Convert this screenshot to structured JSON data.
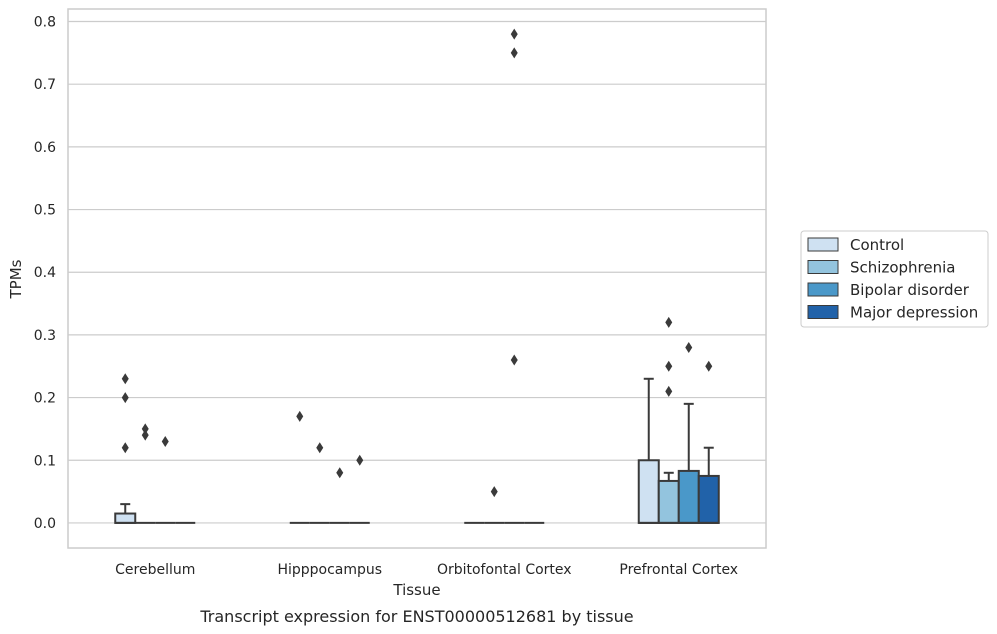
{
  "chart_data": {
    "type": "box",
    "title": "",
    "caption": "Transcript expression for ENST00000512681 by tissue",
    "xlabel": "Tissue",
    "ylabel": "TPMs",
    "ylim": [
      -0.04,
      0.82
    ],
    "yticks": [
      "0.0",
      "0.1",
      "0.2",
      "0.3",
      "0.4",
      "0.5",
      "0.6",
      "0.7",
      "0.8"
    ],
    "grid": "horizontal",
    "legend_position": "right",
    "categories": [
      "Cerebellum",
      "Hipppocampus",
      "Orbitofontal Cortex",
      "Prefrontal Cortex"
    ],
    "series": [
      {
        "name": "Control",
        "color": "#cfe1f2",
        "boxes": [
          {
            "q1": 0.0,
            "median": 0.0,
            "q3": 0.015,
            "whisker_low": 0.0,
            "whisker_high": 0.03,
            "outliers": [
              0.12,
              0.2,
              0.23
            ]
          },
          {
            "q1": 0.0,
            "median": 0.0,
            "q3": 0.0,
            "whisker_low": 0.0,
            "whisker_high": 0.0,
            "outliers": [
              0.17
            ]
          },
          {
            "q1": 0.0,
            "median": 0.0,
            "q3": 0.0,
            "whisker_low": 0.0,
            "whisker_high": 0.0,
            "outliers": []
          },
          {
            "q1": 0.0,
            "median": 0.0,
            "q3": 0.1,
            "whisker_low": 0.0,
            "whisker_high": 0.23,
            "outliers": []
          }
        ]
      },
      {
        "name": "Schizophrenia",
        "color": "#93c4de",
        "boxes": [
          {
            "q1": 0.0,
            "median": 0.0,
            "q3": 0.0,
            "whisker_low": 0.0,
            "whisker_high": 0.0,
            "outliers": [
              0.14,
              0.15
            ]
          },
          {
            "q1": 0.0,
            "median": 0.0,
            "q3": 0.0,
            "whisker_low": 0.0,
            "whisker_high": 0.0,
            "outliers": [
              0.12
            ]
          },
          {
            "q1": 0.0,
            "median": 0.0,
            "q3": 0.0,
            "whisker_low": 0.0,
            "whisker_high": 0.0,
            "outliers": [
              0.05
            ]
          },
          {
            "q1": 0.0,
            "median": 0.0,
            "q3": 0.067,
            "whisker_low": 0.0,
            "whisker_high": 0.08,
            "outliers": [
              0.21,
              0.25,
              0.32
            ]
          }
        ]
      },
      {
        "name": "Bipolar disorder",
        "color": "#4a98c9",
        "boxes": [
          {
            "q1": 0.0,
            "median": 0.0,
            "q3": 0.0,
            "whisker_low": 0.0,
            "whisker_high": 0.0,
            "outliers": [
              0.13
            ]
          },
          {
            "q1": 0.0,
            "median": 0.0,
            "q3": 0.0,
            "whisker_low": 0.0,
            "whisker_high": 0.0,
            "outliers": [
              0.08
            ]
          },
          {
            "q1": 0.0,
            "median": 0.0,
            "q3": 0.0,
            "whisker_low": 0.0,
            "whisker_high": 0.0,
            "outliers": [
              0.26,
              0.75,
              0.78
            ]
          },
          {
            "q1": 0.0,
            "median": 0.0,
            "q3": 0.083,
            "whisker_low": 0.0,
            "whisker_high": 0.19,
            "outliers": [
              0.28
            ]
          }
        ]
      },
      {
        "name": "Major depression",
        "color": "#2162a9",
        "boxes": [
          {
            "q1": 0.0,
            "median": 0.0,
            "q3": 0.0,
            "whisker_low": 0.0,
            "whisker_high": 0.0,
            "outliers": []
          },
          {
            "q1": 0.0,
            "median": 0.0,
            "q3": 0.0,
            "whisker_low": 0.0,
            "whisker_high": 0.0,
            "outliers": [
              0.1
            ]
          },
          {
            "q1": 0.0,
            "median": 0.0,
            "q3": 0.0,
            "whisker_low": 0.0,
            "whisker_high": 0.0,
            "outliers": []
          },
          {
            "q1": 0.0,
            "median": 0.0,
            "q3": 0.075,
            "whisker_low": 0.0,
            "whisker_high": 0.12,
            "outliers": [
              0.25
            ]
          }
        ]
      }
    ]
  }
}
